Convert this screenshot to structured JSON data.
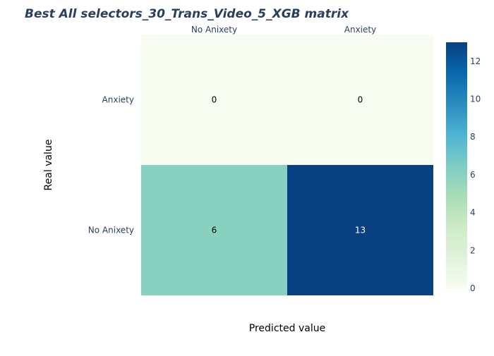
{
  "chart_data": {
    "type": "heatmap",
    "title": "Best All selectors_30_Trans_Video_5_XGB matrix",
    "xlabel": "Predicted value",
    "ylabel": "Real value",
    "x_categories": [
      "No Anixety",
      "Anxiety"
    ],
    "y_categories_top_to_bottom": [
      "Anxiety",
      "No Anixety"
    ],
    "z": [
      [
        0,
        0
      ],
      [
        6,
        13
      ]
    ],
    "colorscale": "GnBu",
    "zrange": [
      0,
      13
    ],
    "colorbar_ticks": [
      "0",
      "2",
      "4",
      "6",
      "8",
      "10",
      "12"
    ],
    "colorbar_tick_values": [
      0,
      2,
      4,
      6,
      8,
      10,
      12
    ]
  }
}
